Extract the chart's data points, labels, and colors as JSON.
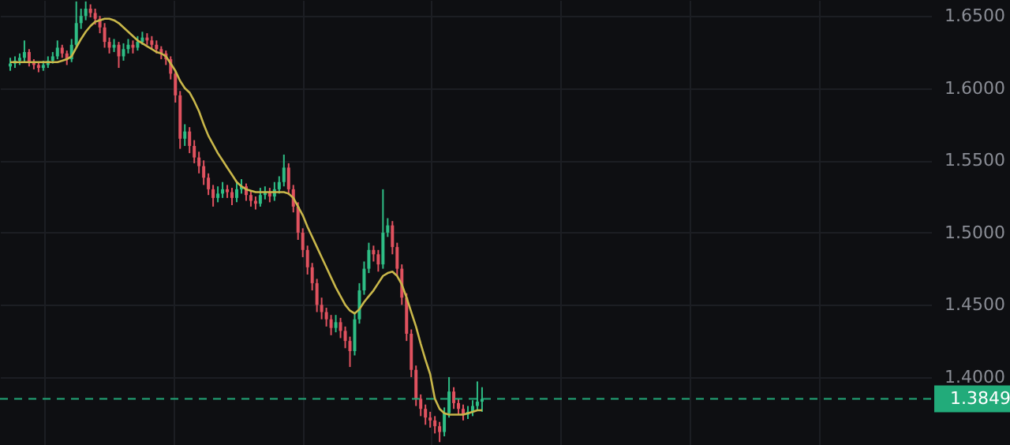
{
  "chart_data": {
    "type": "candlestick",
    "categories": [
      null,
      null,
      null,
      null,
      null,
      null,
      null,
      null,
      null,
      null,
      null,
      null,
      null,
      null,
      null,
      null,
      null,
      null,
      null,
      null,
      null,
      null,
      null,
      null,
      null,
      null,
      null,
      null,
      null,
      null,
      null,
      null,
      null,
      null,
      null,
      null,
      null,
      null,
      null,
      null,
      null,
      null,
      null,
      null,
      null,
      null,
      null,
      null,
      null,
      null,
      null,
      null,
      null,
      null,
      null,
      null,
      null,
      null,
      null,
      null,
      null,
      null,
      null,
      null,
      null,
      null,
      null,
      null,
      null,
      null,
      null,
      null,
      null,
      null,
      null,
      null,
      null,
      null,
      null,
      null,
      null,
      null,
      null,
      null,
      null,
      null,
      null,
      null,
      null,
      null,
      null,
      null,
      null,
      null,
      null,
      null,
      null,
      null,
      null,
      null,
      null,
      null,
      null,
      null,
      null,
      null,
      null,
      null,
      null,
      null,
      null,
      null,
      null,
      null,
      null,
      null,
      null,
      null,
      null,
      null,
      null,
      null,
      null,
      null,
      null,
      null,
      null,
      null,
      null,
      null,
      null,
      null,
      null,
      null,
      null,
      null,
      null,
      null,
      null,
      null,
      null,
      null,
      null,
      null,
      null,
      null,
      null,
      null,
      null,
      null,
      null,
      null,
      null,
      null,
      null,
      null,
      null,
      null,
      null,
      null,
      null,
      null,
      null,
      null,
      null,
      null,
      null,
      null,
      null,
      null,
      null,
      null,
      null,
      null,
      null,
      null,
      null,
      null,
      null,
      null,
      null,
      null,
      null,
      null,
      null,
      null,
      null,
      null,
      null,
      null,
      null,
      null,
      null,
      null
    ],
    "ohlc": [
      [
        1.615,
        1.621,
        1.612,
        1.617
      ],
      [
        1.617,
        1.622,
        1.614,
        1.619
      ],
      [
        1.619,
        1.624,
        1.616,
        1.621
      ],
      [
        1.621,
        1.633,
        1.618,
        1.625
      ],
      [
        1.625,
        1.627,
        1.615,
        1.618
      ],
      [
        1.618,
        1.62,
        1.613,
        1.616
      ],
      [
        1.616,
        1.618,
        1.611,
        1.614
      ],
      [
        1.614,
        1.619,
        1.612,
        1.616
      ],
      [
        1.616,
        1.622,
        1.614,
        1.619
      ],
      [
        1.619,
        1.625,
        1.617,
        1.622
      ],
      [
        1.622,
        1.633,
        1.62,
        1.628
      ],
      [
        1.628,
        1.63,
        1.621,
        1.624
      ],
      [
        1.624,
        1.626,
        1.616,
        1.62
      ],
      [
        1.62,
        1.634,
        1.618,
        1.63
      ],
      [
        1.63,
        1.66,
        1.628,
        1.645
      ],
      [
        1.645,
        1.655,
        1.641,
        1.65
      ],
      [
        1.65,
        1.66,
        1.647,
        1.655
      ],
      [
        1.655,
        1.658,
        1.649,
        1.652
      ],
      [
        1.652,
        1.655,
        1.644,
        1.648
      ],
      [
        1.648,
        1.65,
        1.638,
        1.642
      ],
      [
        1.642,
        1.645,
        1.628,
        1.632
      ],
      [
        1.632,
        1.635,
        1.624,
        1.628
      ],
      [
        1.628,
        1.634,
        1.625,
        1.63
      ],
      [
        1.63,
        1.632,
        1.614,
        1.622
      ],
      [
        1.622,
        1.631,
        1.619,
        1.627
      ],
      [
        1.627,
        1.634,
        1.624,
        1.63
      ],
      [
        1.63,
        1.633,
        1.624,
        1.628
      ],
      [
        1.628,
        1.636,
        1.626,
        1.632
      ],
      [
        1.632,
        1.639,
        1.63,
        1.635
      ],
      [
        1.635,
        1.638,
        1.63,
        1.633
      ],
      [
        1.633,
        1.636,
        1.627,
        1.63
      ],
      [
        1.63,
        1.633,
        1.624,
        1.627
      ],
      [
        1.627,
        1.629,
        1.62,
        1.624
      ],
      [
        1.624,
        1.626,
        1.616,
        1.62
      ],
      [
        1.62,
        1.622,
        1.606,
        1.61
      ],
      [
        1.61,
        1.612,
        1.59,
        1.595
      ],
      [
        1.595,
        1.598,
        1.558,
        1.565
      ],
      [
        1.565,
        1.575,
        1.56,
        1.57
      ],
      [
        1.57,
        1.573,
        1.555,
        1.56
      ],
      [
        1.56,
        1.564,
        1.548,
        1.552
      ],
      [
        1.552,
        1.556,
        1.541,
        1.546
      ],
      [
        1.546,
        1.55,
        1.533,
        1.538
      ],
      [
        1.538,
        1.541,
        1.526,
        1.53
      ],
      [
        1.53,
        1.533,
        1.518,
        1.524
      ],
      [
        1.524,
        1.532,
        1.521,
        1.527
      ],
      [
        1.527,
        1.535,
        1.524,
        1.53
      ],
      [
        1.53,
        1.533,
        1.524,
        1.528
      ],
      [
        1.528,
        1.531,
        1.519,
        1.524
      ],
      [
        1.524,
        1.535,
        1.521,
        1.53
      ],
      [
        1.53,
        1.537,
        1.527,
        1.532
      ],
      [
        1.532,
        1.534,
        1.522,
        1.526
      ],
      [
        1.526,
        1.529,
        1.518,
        1.522
      ],
      [
        1.522,
        1.525,
        1.516,
        1.52
      ],
      [
        1.52,
        1.531,
        1.518,
        1.526
      ],
      [
        1.526,
        1.532,
        1.523,
        1.528
      ],
      [
        1.528,
        1.531,
        1.521,
        1.525
      ],
      [
        1.525,
        1.535,
        1.522,
        1.53
      ],
      [
        1.53,
        1.539,
        1.527,
        1.535
      ],
      [
        1.535,
        1.554,
        1.532,
        1.545
      ],
      [
        1.545,
        1.548,
        1.526,
        1.53
      ],
      [
        1.53,
        1.533,
        1.514,
        1.518
      ],
      [
        1.518,
        1.521,
        1.495,
        1.5
      ],
      [
        1.5,
        1.503,
        1.483,
        1.488
      ],
      [
        1.488,
        1.491,
        1.471,
        1.476
      ],
      [
        1.476,
        1.479,
        1.46,
        1.465
      ],
      [
        1.465,
        1.468,
        1.445,
        1.45
      ],
      [
        1.45,
        1.455,
        1.44,
        1.445
      ],
      [
        1.445,
        1.448,
        1.435,
        1.44
      ],
      [
        1.44,
        1.443,
        1.429,
        1.434
      ],
      [
        1.434,
        1.443,
        1.431,
        1.438
      ],
      [
        1.438,
        1.441,
        1.427,
        1.432
      ],
      [
        1.432,
        1.435,
        1.42,
        1.425
      ],
      [
        1.425,
        1.428,
        1.407,
        1.418
      ],
      [
        1.418,
        1.445,
        1.415,
        1.44
      ],
      [
        1.44,
        1.465,
        1.437,
        1.46
      ],
      [
        1.46,
        1.48,
        1.457,
        1.475
      ],
      [
        1.475,
        1.493,
        1.472,
        1.488
      ],
      [
        1.488,
        1.491,
        1.48,
        1.485
      ],
      [
        1.485,
        1.488,
        1.473,
        1.478
      ],
      [
        1.478,
        1.53,
        1.475,
        1.5
      ],
      [
        1.5,
        1.51,
        1.497,
        1.505
      ],
      [
        1.505,
        1.508,
        1.485,
        1.49
      ],
      [
        1.49,
        1.493,
        1.47,
        1.475
      ],
      [
        1.475,
        1.478,
        1.45,
        1.455
      ],
      [
        1.455,
        1.458,
        1.425,
        1.43
      ],
      [
        1.43,
        1.433,
        1.4,
        1.405
      ],
      [
        1.405,
        1.408,
        1.38,
        1.385
      ],
      [
        1.385,
        1.388,
        1.373,
        1.378
      ],
      [
        1.378,
        1.381,
        1.367,
        1.372
      ],
      [
        1.372,
        1.376,
        1.365,
        1.37
      ],
      [
        1.37,
        1.373,
        1.361,
        1.366
      ],
      [
        1.366,
        1.369,
        1.355,
        1.362
      ],
      [
        1.362,
        1.379,
        1.359,
        1.375
      ],
      [
        1.375,
        1.4,
        1.372,
        1.39
      ],
      [
        1.39,
        1.393,
        1.378,
        1.382
      ],
      [
        1.382,
        1.385,
        1.374,
        1.378
      ],
      [
        1.378,
        1.381,
        1.37,
        1.374
      ],
      [
        1.374,
        1.38,
        1.371,
        1.376
      ],
      [
        1.376,
        1.384,
        1.373,
        1.38
      ],
      [
        1.38,
        1.397,
        1.377,
        1.383
      ],
      [
        1.383,
        1.393,
        1.376,
        1.3849
      ],
      null,
      null,
      null,
      null,
      null,
      null,
      null,
      null,
      null,
      null,
      null,
      null,
      null,
      null,
      null,
      null,
      null,
      null,
      null,
      null,
      null,
      null,
      null,
      null,
      null,
      null,
      null,
      null,
      null,
      null,
      null,
      null,
      null,
      null,
      null,
      null,
      null,
      null,
      null,
      null,
      null,
      null,
      null,
      null,
      null,
      null,
      null,
      null,
      null,
      null,
      null,
      null,
      null,
      null,
      null,
      null,
      null,
      null,
      null,
      null,
      null,
      null,
      null,
      null,
      null,
      null,
      null,
      null,
      null,
      null,
      null,
      null,
      null,
      null,
      null,
      null,
      null,
      null,
      null,
      null,
      null,
      null,
      null,
      null,
      null,
      null,
      null,
      null,
      null,
      null,
      null,
      null,
      null
    ],
    "series": [
      {
        "type": "line",
        "color": "#c9b74a",
        "values": [
          1.618,
          1.618,
          1.618,
          1.618,
          1.618,
          1.618,
          1.618,
          1.618,
          1.618,
          1.618,
          1.618,
          1.619,
          1.62,
          1.622,
          1.628,
          1.634,
          1.639,
          1.643,
          1.646,
          1.647,
          1.648,
          1.648,
          1.647,
          1.645,
          1.642,
          1.639,
          1.636,
          1.633,
          1.631,
          1.629,
          1.627,
          1.625,
          1.624,
          1.622,
          1.617,
          1.612,
          1.605,
          1.6,
          1.597,
          1.591,
          1.584,
          1.575,
          1.567,
          1.561,
          1.555,
          1.55,
          1.545,
          1.54,
          1.535,
          1.532,
          1.53,
          1.529,
          1.528,
          1.528,
          1.528,
          1.528,
          1.528,
          1.528,
          1.528,
          1.527,
          1.524,
          1.518,
          1.512,
          1.504,
          1.497,
          1.49,
          1.483,
          1.476,
          1.469,
          1.462,
          1.456,
          1.45,
          1.446,
          1.444,
          1.447,
          1.452,
          1.456,
          1.46,
          1.465,
          1.47,
          1.472,
          1.473,
          1.47,
          1.464,
          1.455,
          1.445,
          1.435,
          1.423,
          1.412,
          1.402,
          1.385,
          1.378,
          1.375,
          1.374,
          1.374,
          1.374,
          1.374,
          1.375,
          1.376,
          1.377,
          1.377,
          null,
          null,
          null,
          null,
          null,
          null,
          null,
          null,
          null,
          null,
          null,
          null,
          null,
          null,
          null,
          null,
          null,
          null,
          null,
          null,
          null,
          null,
          null,
          null,
          null,
          null,
          null,
          null,
          null,
          null,
          null,
          null,
          null,
          null,
          null,
          null,
          null,
          null,
          null,
          null,
          null,
          null,
          null,
          null,
          null,
          null,
          null,
          null,
          null,
          null,
          null,
          null,
          null,
          null,
          null,
          null,
          null,
          null,
          null,
          null,
          null,
          null,
          null,
          null,
          null,
          null,
          null,
          null,
          null,
          null,
          null,
          null,
          null,
          null,
          null,
          null,
          null,
          null,
          null,
          null,
          null,
          null,
          null,
          null,
          null,
          null,
          null,
          null,
          null,
          null,
          null,
          null,
          null
        ]
      }
    ],
    "ylim": [
      1.353,
      1.661
    ],
    "yticks": [
      {
        "value": 1.4,
        "label": "1.4000"
      },
      {
        "value": 1.45,
        "label": "1.4500"
      },
      {
        "value": 1.5,
        "label": "1.5000"
      },
      {
        "value": 1.55,
        "label": "1.5500"
      },
      {
        "value": 1.6,
        "label": "1.6000"
      },
      {
        "value": 1.65,
        "label": "1.6500"
      }
    ],
    "ref_lines": [
      {
        "axis": "y",
        "value": 1.3849,
        "label": "1.3849",
        "color": "#22ab7a",
        "line_style": "dashed"
      }
    ],
    "grid": true,
    "tick_labels": "y"
  }
}
